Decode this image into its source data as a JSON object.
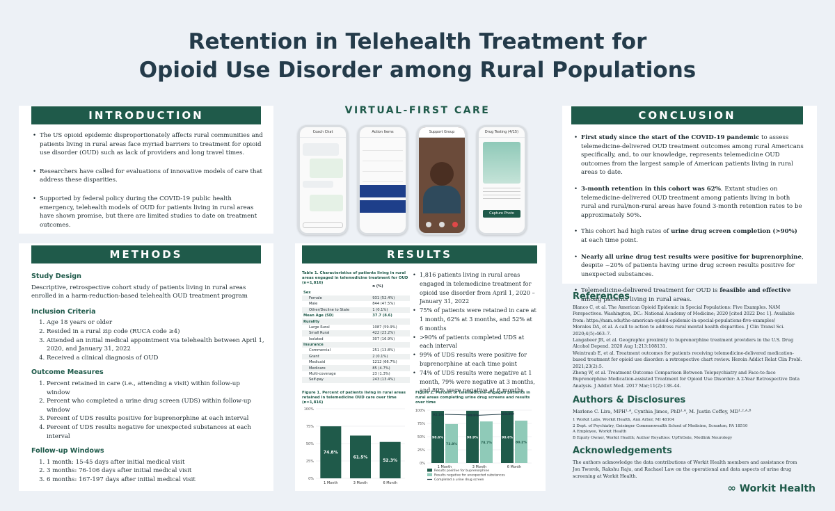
{
  "title_line1": "Retention in Telehealth Treatment for",
  "title_line2": "Opioid Use Disorder among Rural Populations",
  "introduction": {
    "heading": "INTRODUCTION",
    "bullets": [
      "The US opioid epidemic disproportionately affects rural communities and patients living in rural areas face myriad barriers to treatment for opioid use disorder (OUD) such as lack of providers and long travel times.",
      "Researchers have called for evaluations of innovative models of care that address these disparities.",
      "Supported by federal policy during the COVID-19 public health emergency, telehealth models of OUD for patients living in rural areas have shown promise, but there are limited studies to date on treatment outcomes."
    ]
  },
  "methods": {
    "heading": "METHODS",
    "study_design_title": "Study Design",
    "study_design_text": "Descriptive, retrospective cohort study of patients living in rural areas enrolled in a harm-reduction-based telehealth OUD treatment program",
    "inclusion_title": "Inclusion Criteria",
    "inclusion": [
      "Age 18 years or older",
      "Resided in a rural zip code (RUCA code ≥4)",
      "Attended an initial medical appointment via telehealth between April 1, 2020, and January 31, 2022",
      "Received a clinical diagnosis of OUD"
    ],
    "outcome_title": "Outcome Measures",
    "outcomes": [
      "Percent retained in care (i.e., attending a visit) within follow-up window",
      "Percent who completed a urine drug screen (UDS) within follow-up window",
      "Percent of UDS results positive for buprenorphine at each interval",
      "Percent of UDS results negative for unexpected substances at each interval"
    ],
    "followup_title": "Follow-up Windows",
    "followup": [
      "1 month: 15-45 days after initial medical visit",
      "3 months: 76-106 days after initial medical visit",
      "6 months: 167-197 days after initial medical visit"
    ]
  },
  "virtual": {
    "heading": "VIRTUAL-FIRST CARE",
    "phone1_title": "Coach Chat",
    "phone2_title": "Action Items",
    "phone3_title": "Support Group",
    "phone4_title": "Drug Testing (4/15)",
    "phone4_button": "Capture Photo"
  },
  "results": {
    "heading": "RESULTS",
    "table_caption": "Table 1. Characteristics of patients living in rural areas engaged in telemedicine treatment for OUD (n=1,816)",
    "table_col": "n (%)",
    "table_rows": [
      {
        "label": "Sex",
        "value": "",
        "type": "hd"
      },
      {
        "label": "Female",
        "value": "931 (52.4%)",
        "type": "sub"
      },
      {
        "label": "Male",
        "value": "844 (47.5%)",
        "type": "sub"
      },
      {
        "label": "Other/Decline to State",
        "value": "1 (0.1%)",
        "type": "sub"
      },
      {
        "label": "Mean Age (SD)",
        "value": "37.7 (8.6)",
        "type": "hd"
      },
      {
        "label": "Rurality",
        "value": "",
        "type": "hd"
      },
      {
        "label": "Large Rural",
        "value": "1087 (59.9%)",
        "type": "sub"
      },
      {
        "label": "Small Rural",
        "value": "422 (23.2%)",
        "type": "sub"
      },
      {
        "label": "Isolated",
        "value": "307 (16.9%)",
        "type": "sub"
      },
      {
        "label": "Insurance",
        "value": "",
        "type": "hd"
      },
      {
        "label": "Commercial",
        "value": "251 (13.8%)",
        "type": "sub"
      },
      {
        "label": "Grant",
        "value": "2 (0.1%)",
        "type": "sub"
      },
      {
        "label": "Medicaid",
        "value": "1212 (66.7%)",
        "type": "sub"
      },
      {
        "label": "Medicare",
        "value": "85 (4.7%)",
        "type": "sub"
      },
      {
        "label": "Multi-coverage",
        "value": "23 (1.3%)",
        "type": "sub"
      },
      {
        "label": "Self-pay",
        "value": "243 (13.4%)",
        "type": "sub"
      }
    ],
    "bullets": [
      "1,816 patients living in rural areas engaged in telemedicine treatment for opioid use disorder from April 1, 2020 – January 31, 2022",
      "75% of patients were retained in care at 1 month, 62% at 3 months, and 52% at 6 months",
      ">90% of patients completed UDS at each interval",
      "99% of UDS results were positive for buprenorphine at each time point",
      "74% of UDS results were negative at 1 month, 79% were negative at 3 months, and 80% were negative at 6 months"
    ],
    "fig1_caption": "Figure 1. Percent of patients living in rural areas retained in telemedicine OUD care over time (n=1,816)",
    "fig2_caption": "Figure 2. Percent of telemedicine-engaged patients in rural areas completing urine drug screens and results over time"
  },
  "chart_data": [
    {
      "type": "bar",
      "categories": [
        "1 Month",
        "3 Month",
        "6 Month"
      ],
      "values": [
        74.8,
        61.5,
        52.3
      ],
      "value_labels": [
        "74.8%",
        "61.5%",
        "52.3%"
      ],
      "y_ticks": [
        "0%",
        "25%",
        "50%",
        "75%",
        "100%"
      ],
      "ylim": [
        0,
        100
      ],
      "bar_color": "#1f5a4a"
    },
    {
      "type": "bar",
      "categories": [
        "1 Month",
        "3 Month",
        "6 Month"
      ],
      "series": [
        {
          "name": "Results positive for buprenorphine",
          "values": [
            98.6,
            98.9,
            98.6
          ],
          "labels": [
            "98.6%",
            "98.9%",
            "98.6%"
          ],
          "color": "#1f5a4a"
        },
        {
          "name": "Results negative for unexpected substances",
          "values": [
            73.8,
            78.7,
            80.2
          ],
          "labels": [
            "73.8%",
            "78.7%",
            "80.2%"
          ],
          "color": "#8fcab8"
        },
        {
          "name": "Completed a urine drug screen",
          "values": [
            92.1,
            90.5,
            93.3
          ],
          "labels": [
            "92.1%",
            "90.5%",
            "93.3%"
          ],
          "color": "#1f3b45",
          "line": true
        }
      ],
      "y_ticks": [
        "0%",
        "25%",
        "50%",
        "75%",
        "100%"
      ],
      "ylim": [
        0,
        100
      ]
    }
  ],
  "conclusion": {
    "heading": "CONCLUSION",
    "items": [
      {
        "bold": "First study since the start of the COVID-19 pandemic",
        "pre": "",
        "post": " to assess telemedicine-delivered OUD treatment outcomes among rural Americans specifically, and, to our knowledge, represents telemedicine OUD outcomes from the largest sample of American patients living in rural areas to date."
      },
      {
        "bold": "3-month retention in this cohort was 62%",
        "pre": "",
        "post": ". Extant studies on telemedicine-delivered OUD treatment among patients living in both rural and rural/non-rural areas have found 3-month retention rates to be approximately 50%."
      },
      {
        "bold": "urine drug screen completion (>90%)",
        "pre": "This cohort had high rates of ",
        "post": " at each time point."
      },
      {
        "bold": "Nearly all urine drug test results were positive for buprenorphine",
        "pre": "",
        "post": ", despite ~20% of patients having urine drug screen results positive for unexpected substances."
      },
      {
        "bold": "feasible and effective",
        "pre": "Telemedicine-delivered treatment for OUD is ",
        "post": " among patients living in rural areas."
      }
    ]
  },
  "references": {
    "heading": "References",
    "items": [
      "Blanco C, et al. The American Opioid Epidemic in Special Populations: Five Examples. NAM Perspectives. Washington, DC.: National Academy of Medicine; 2020 [cited 2022 Dec 1]. Available from: https://nam.edu/the-american-opioid-epidemic-in-special-populations-five-examples/",
      "Morales DA, et al. A call to action to address rural mental health disparities. J Clin Transl Sci. 2020;4(5):463–7.",
      "Langabeer JR, et al. Geographic proximity to buprenorphine treatment providers in the U.S. Drug Alcohol Depend. 2020 Aug 1;213:108131.",
      "Weintraub E, et al. Treatment outcomes for patients receiving telemedicine-delivered medication-based treatment for opioid use disorder: a retrospective chart review. Heroin Addict Relat Clin Probl. 2021;23(2):5.",
      "Zheng W, et al. Treatment Outcome Comparison Between Telepsychiatry and Face-to-face Buprenorphine Medication-assisted Treatment for Opioid Use Disorder: A 2-Year Retrospective Data Analysis. J Addict Med. 2017 Mar;11(2):138–44."
    ]
  },
  "authors": {
    "heading": "Authors & Disclosures",
    "names": "Marlene C. Lira, MPH¹·ᴬ, Cynthia Jimes, PhD¹·ᴬ, M. Justin Coffey, MD¹·²·ᴬ·ᴮ",
    "affiliations": [
      "1 Workit Labs, Workit Health, Ann Arbor, MI 48104",
      "2 Dept. of Psychiatry, Geisinger Commonwealth School of Medicine, Scranton, PA 18510",
      "A Employee, Workit Health",
      "B Equity Owner, Workit Health; Author Royalties: UpToDate, Medlink Neurology"
    ]
  },
  "acknowledgements": {
    "heading": "Acknowledgements",
    "text": "The authors acknowledge the data contributions of Workit Health members and assistance from Jon Tworek, Rakshu Raju, and Rachael Law on the operational and data aspects of urine drug screening at Workit Health."
  },
  "logo_text": "Workit Health"
}
